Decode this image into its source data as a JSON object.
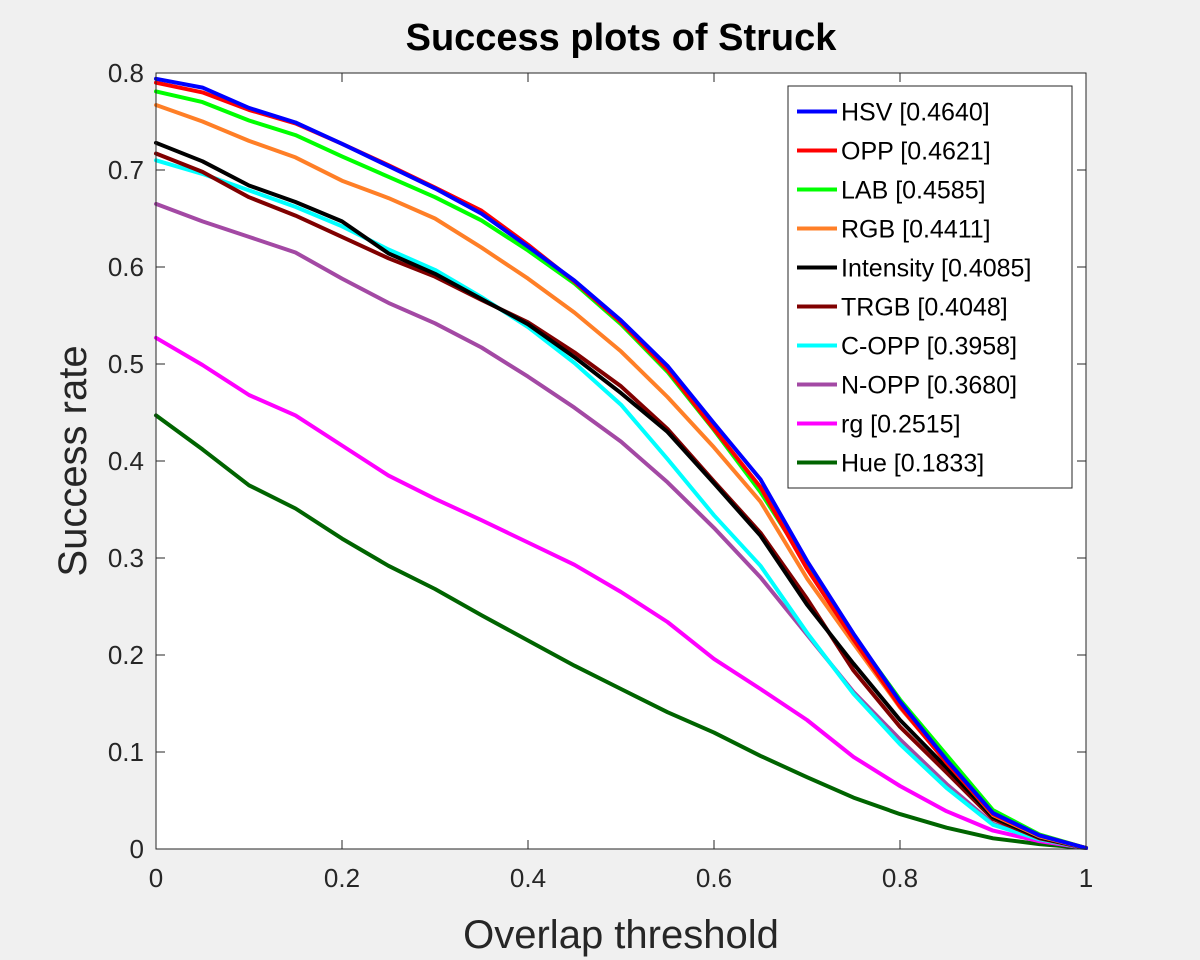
{
  "chart_data": {
    "type": "line",
    "title": "Success plots of Struck",
    "xlabel": "Overlap threshold",
    "ylabel": "Success rate",
    "xlim": [
      0,
      1
    ],
    "ylim": [
      0,
      0.8
    ],
    "xticks": [
      "0",
      "0.2",
      "0.4",
      "0.6",
      "0.8",
      "1"
    ],
    "yticks": [
      "0",
      "0.1",
      "0.2",
      "0.3",
      "0.4",
      "0.5",
      "0.6",
      "0.7",
      "0.8"
    ],
    "x": [
      0,
      0.05,
      0.1,
      0.15,
      0.2,
      0.25,
      0.3,
      0.35,
      0.4,
      0.45,
      0.5,
      0.55,
      0.6,
      0.65,
      0.7,
      0.75,
      0.8,
      0.85,
      0.9,
      0.95,
      1.0
    ],
    "grid": false,
    "legend_position": "top-right",
    "series": [
      {
        "name": "HSV [0.4640]",
        "color": "#0000ff",
        "values": [
          0.794,
          0.785,
          0.764,
          0.749,
          0.727,
          0.704,
          0.681,
          0.655,
          0.621,
          0.586,
          0.545,
          0.498,
          0.439,
          0.381,
          0.297,
          0.222,
          0.152,
          0.092,
          0.037,
          0.014,
          0.001
        ]
      },
      {
        "name": "OPP [0.4621]",
        "color": "#ff0000",
        "values": [
          0.79,
          0.78,
          0.762,
          0.748,
          0.727,
          0.705,
          0.682,
          0.658,
          0.623,
          0.585,
          0.543,
          0.494,
          0.433,
          0.373,
          0.289,
          0.216,
          0.147,
          0.089,
          0.036,
          0.014,
          0.001
        ]
      },
      {
        "name": "LAB [0.4585]",
        "color": "#00ff00",
        "values": [
          0.781,
          0.77,
          0.751,
          0.736,
          0.714,
          0.693,
          0.672,
          0.648,
          0.617,
          0.583,
          0.541,
          0.492,
          0.432,
          0.368,
          0.293,
          0.22,
          0.154,
          0.097,
          0.04,
          0.015,
          0.001
        ]
      },
      {
        "name": "RGB [0.4411]",
        "color": "#ff7f27",
        "values": [
          0.767,
          0.75,
          0.73,
          0.713,
          0.689,
          0.671,
          0.65,
          0.62,
          0.588,
          0.553,
          0.513,
          0.466,
          0.414,
          0.358,
          0.279,
          0.212,
          0.146,
          0.09,
          0.035,
          0.013,
          0.001
        ]
      },
      {
        "name": "Intensity [0.4085]",
        "color": "#000000",
        "values": [
          0.728,
          0.709,
          0.684,
          0.667,
          0.647,
          0.614,
          0.593,
          0.567,
          0.541,
          0.507,
          0.47,
          0.43,
          0.377,
          0.323,
          0.252,
          0.191,
          0.133,
          0.084,
          0.033,
          0.012,
          0.001
        ]
      },
      {
        "name": "TRGB [0.4048]",
        "color": "#800000",
        "values": [
          0.717,
          0.698,
          0.672,
          0.653,
          0.631,
          0.609,
          0.59,
          0.566,
          0.543,
          0.512,
          0.477,
          0.433,
          0.379,
          0.326,
          0.258,
          0.184,
          0.126,
          0.079,
          0.031,
          0.011,
          0.001
        ]
      },
      {
        "name": "C-OPP [0.3958]",
        "color": "#00ffff",
        "values": [
          0.71,
          0.696,
          0.679,
          0.662,
          0.642,
          0.618,
          0.597,
          0.569,
          0.538,
          0.501,
          0.458,
          0.402,
          0.344,
          0.292,
          0.223,
          0.16,
          0.108,
          0.063,
          0.025,
          0.01,
          0.001
        ]
      },
      {
        "name": "N-OPP [0.3680]",
        "color": "#a349a4",
        "values": [
          0.665,
          0.647,
          0.631,
          0.615,
          0.588,
          0.563,
          0.542,
          0.517,
          0.487,
          0.455,
          0.42,
          0.378,
          0.331,
          0.28,
          0.221,
          0.162,
          0.113,
          0.067,
          0.026,
          0.01,
          0.001
        ]
      },
      {
        "name": "rg [0.2515]",
        "color": "#ff00ff",
        "values": [
          0.527,
          0.499,
          0.468,
          0.447,
          0.416,
          0.385,
          0.361,
          0.339,
          0.316,
          0.293,
          0.265,
          0.234,
          0.196,
          0.165,
          0.133,
          0.095,
          0.065,
          0.039,
          0.019,
          0.008,
          0.001
        ]
      },
      {
        "name": "Hue [0.1833]",
        "color": "#006400",
        "values": [
          0.447,
          0.412,
          0.375,
          0.351,
          0.32,
          0.292,
          0.268,
          0.241,
          0.215,
          0.189,
          0.165,
          0.141,
          0.12,
          0.096,
          0.074,
          0.053,
          0.036,
          0.022,
          0.011,
          0.005,
          0.001
        ]
      }
    ]
  }
}
